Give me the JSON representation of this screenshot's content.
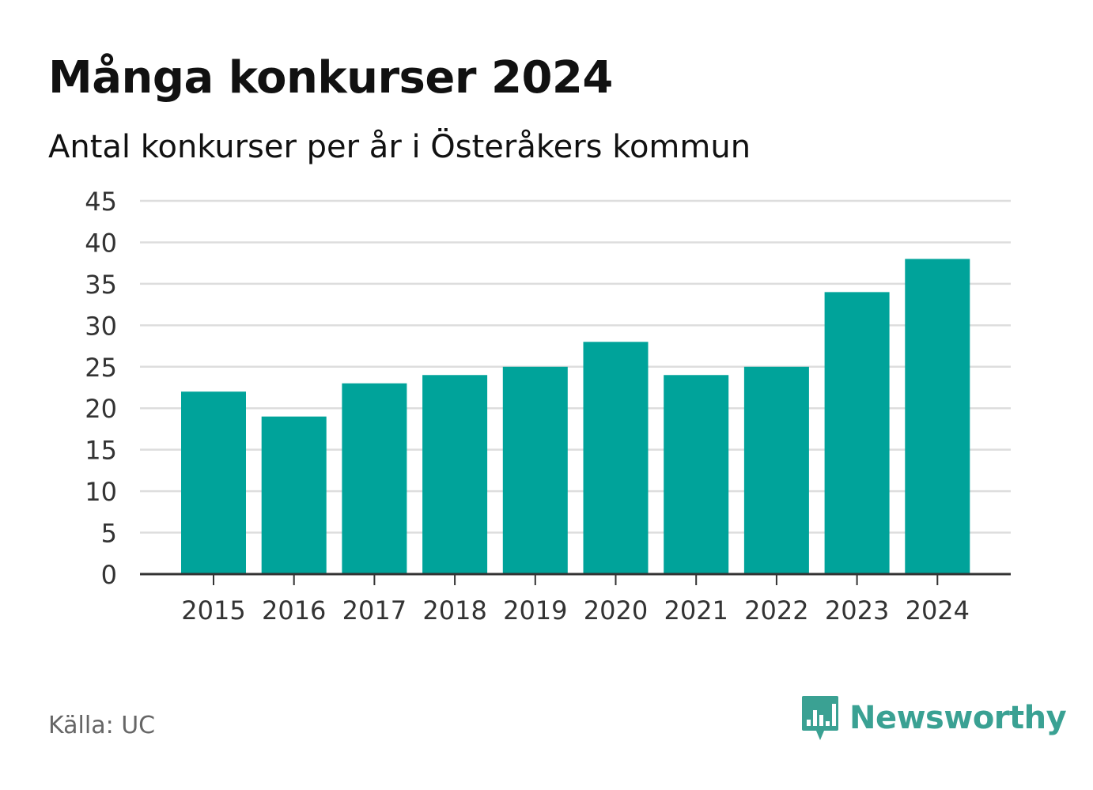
{
  "header": {
    "title": "Många konkurser 2024",
    "subtitle": "Antal konkurser per år i Österåkers kommun"
  },
  "footer": {
    "source": "Källa: UC",
    "brand": "Newsworthy",
    "brand_icon": "bar-chart-speech-bubble-icon"
  },
  "colors": {
    "bar": "#00a39a",
    "grid": "#dddddd",
    "axis": "#333333",
    "brand": "#3aa193"
  },
  "chart_data": {
    "type": "bar",
    "categories": [
      "2015",
      "2016",
      "2017",
      "2018",
      "2019",
      "2020",
      "2021",
      "2022",
      "2023",
      "2024"
    ],
    "values": [
      22,
      19,
      23,
      24,
      25,
      28,
      24,
      25,
      34,
      38
    ],
    "ylim": [
      0,
      45
    ],
    "yticks": [
      0,
      5,
      10,
      15,
      20,
      25,
      30,
      35,
      40,
      45
    ],
    "xlabel": "",
    "ylabel": "",
    "grid": true,
    "legend": "none"
  }
}
